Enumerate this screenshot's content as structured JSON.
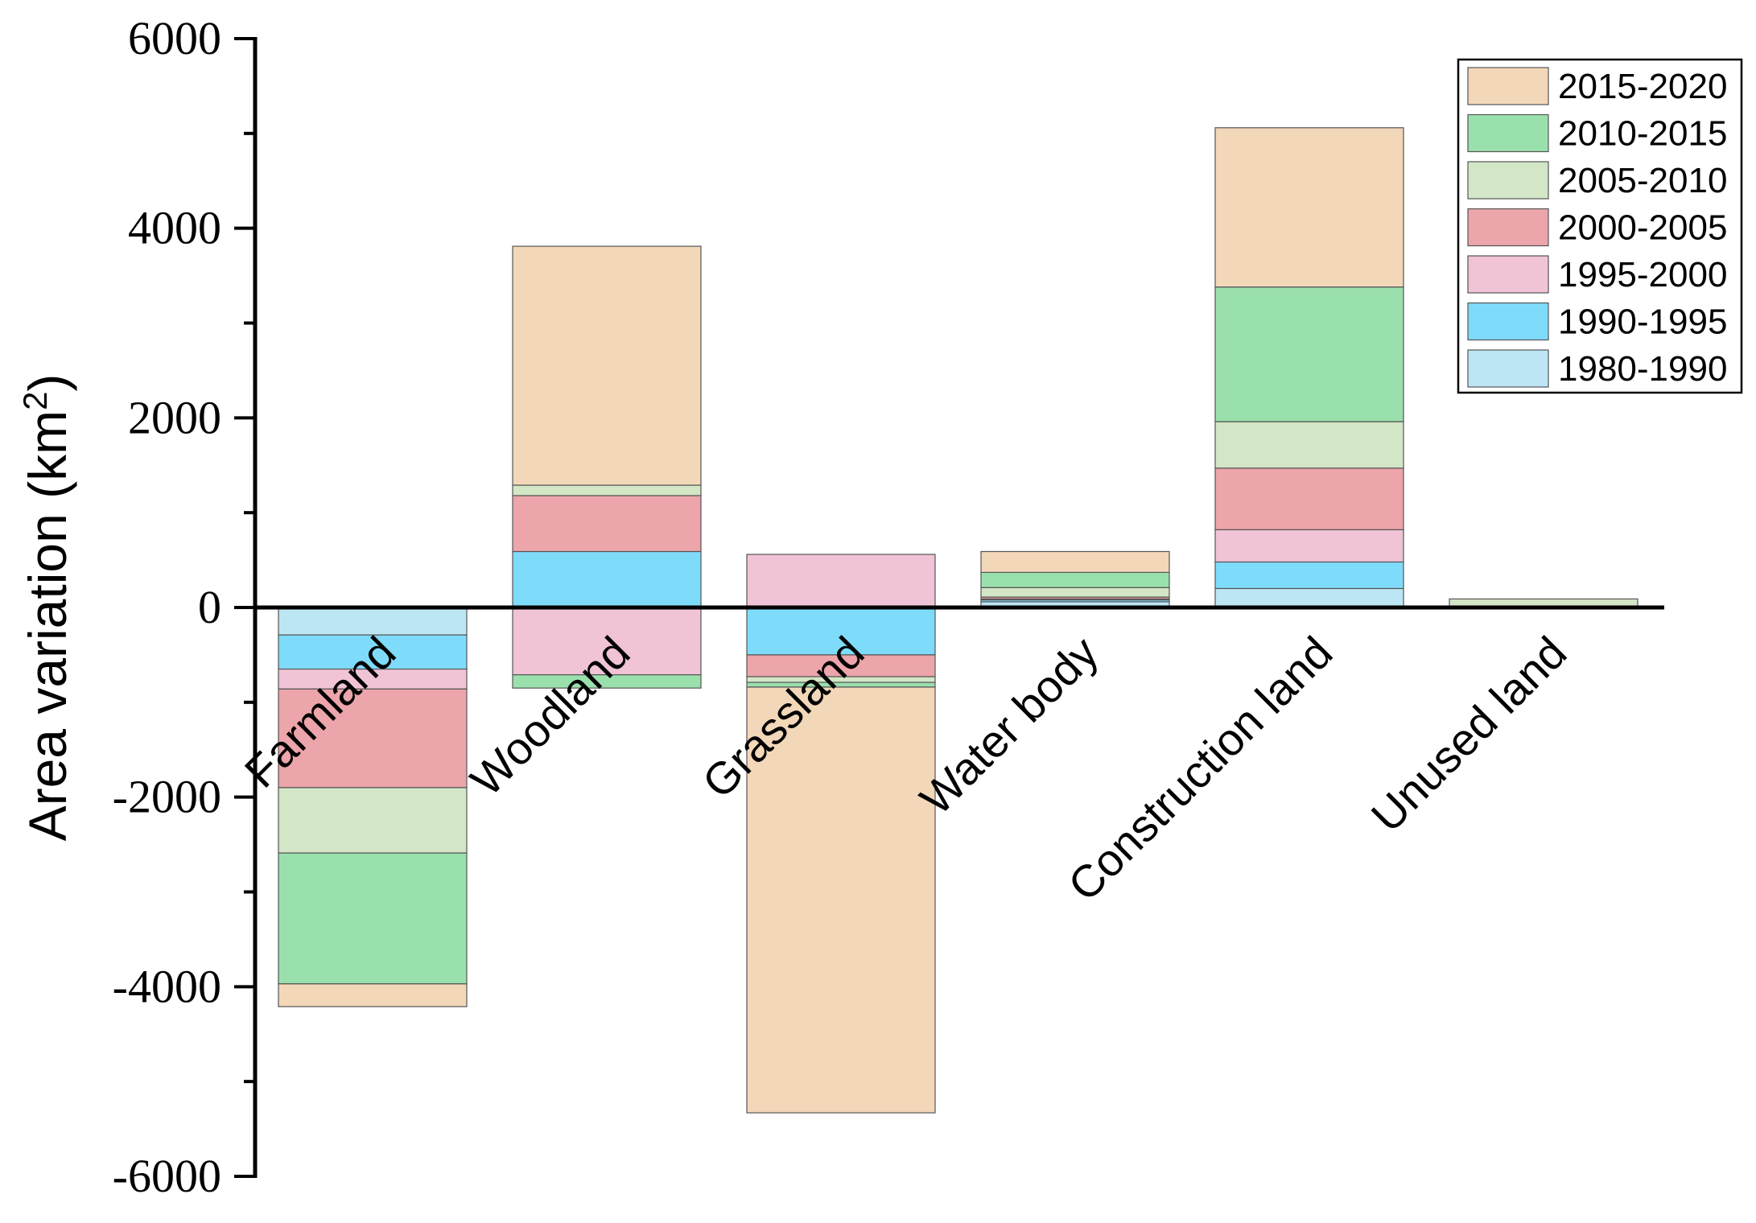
{
  "chart_data": {
    "type": "bar",
    "stacked": true,
    "title": "",
    "xlabel": "",
    "ylabel": "Area variation (km",
    "ylabel_superscript": "2",
    "ylabel_suffix": ")",
    "ylim": [
      -6000,
      6000
    ],
    "yticks": [
      6000,
      4000,
      2000,
      0,
      -2000,
      -4000,
      -6000
    ],
    "legend_position": "top-right",
    "categories": [
      "Farmland",
      "Woodland",
      "Grassland",
      "Water body",
      "Construction land",
      "Unused land"
    ],
    "series": [
      {
        "name": "1980-1990",
        "color": "#bde6f5",
        "values": [
          -290,
          0,
          0,
          60,
          200,
          0
        ]
      },
      {
        "name": "1990-1995",
        "color": "#7fdbfa",
        "values": [
          -360,
          590,
          -500,
          20,
          280,
          0
        ]
      },
      {
        "name": "1995-2000",
        "color": "#f0c3d6",
        "values": [
          -210,
          -710,
          560,
          10,
          340,
          0
        ]
      },
      {
        "name": "2000-2005",
        "color": "#eca5aa",
        "values": [
          -1040,
          590,
          -230,
          20,
          650,
          0
        ]
      },
      {
        "name": "2005-2010",
        "color": "#d3e6c6",
        "values": [
          -690,
          110,
          -60,
          100,
          490,
          90
        ]
      },
      {
        "name": "2010-2015",
        "color": "#9ae0ad",
        "values": [
          -1380,
          -140,
          -50,
          160,
          1420,
          0
        ]
      },
      {
        "name": "2015-2020",
        "color": "#f2d7b9",
        "values": [
          -240,
          2520,
          -4490,
          220,
          1680,
          0
        ]
      }
    ]
  }
}
